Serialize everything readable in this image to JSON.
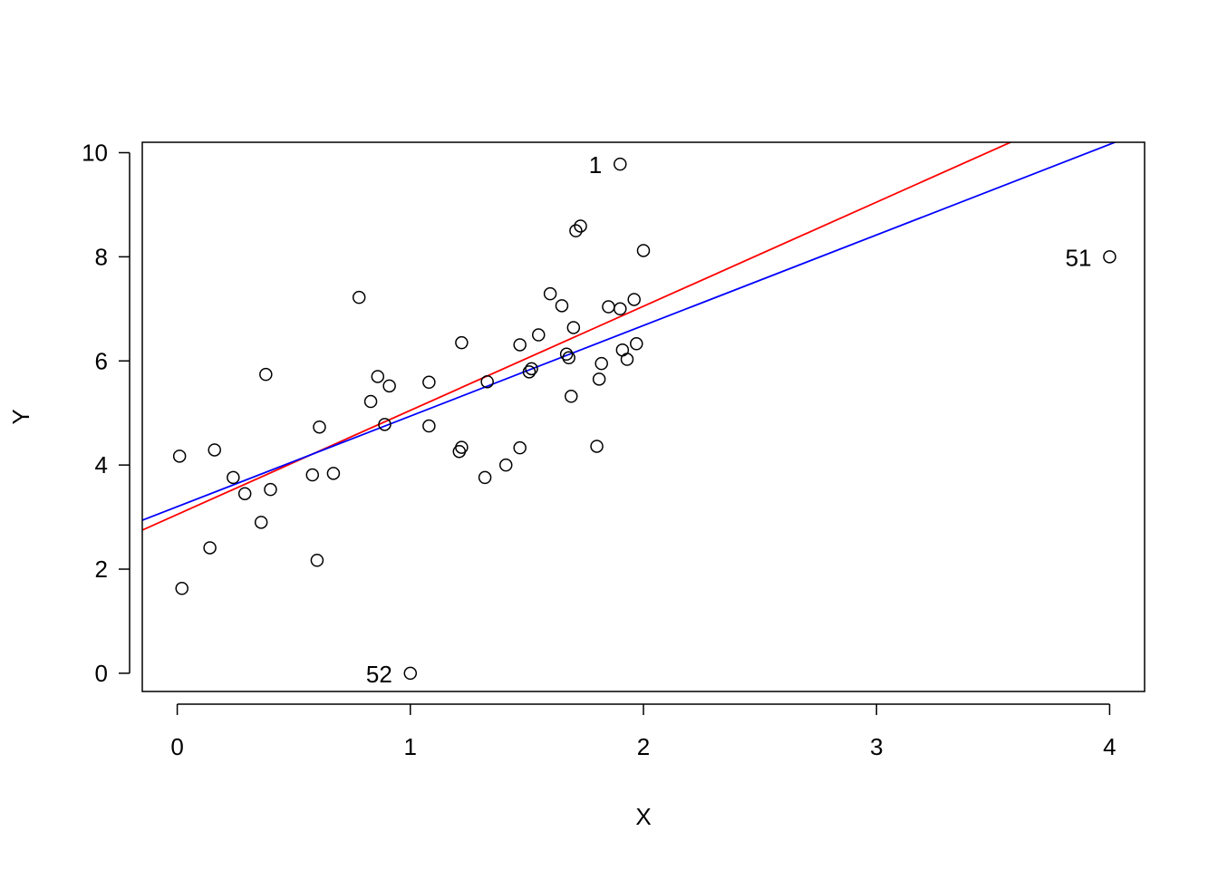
{
  "chart_data": {
    "type": "scatter",
    "title": "",
    "xlabel": "X",
    "ylabel": "Y",
    "xlim": [
      -0.15,
      4.15
    ],
    "ylim": [
      -0.35,
      10.2
    ],
    "x_ticks": [
      0,
      1,
      2,
      3,
      4
    ],
    "x_tick_labels": [
      "0",
      "1",
      "2",
      "3",
      "4"
    ],
    "y_ticks": [
      0,
      2,
      4,
      6,
      8,
      10
    ],
    "y_tick_labels": [
      "0",
      "2",
      "4",
      "6",
      "8",
      "10"
    ],
    "grid": false,
    "point_style": "open-circle",
    "points": [
      {
        "x": 0.01,
        "y": 4.17
      },
      {
        "x": 0.02,
        "y": 1.63
      },
      {
        "x": 0.14,
        "y": 2.41
      },
      {
        "x": 0.16,
        "y": 4.29
      },
      {
        "x": 0.24,
        "y": 3.76
      },
      {
        "x": 0.29,
        "y": 3.45
      },
      {
        "x": 0.36,
        "y": 2.9
      },
      {
        "x": 0.38,
        "y": 5.74
      },
      {
        "x": 0.4,
        "y": 3.53
      },
      {
        "x": 0.58,
        "y": 3.81
      },
      {
        "x": 0.6,
        "y": 2.17
      },
      {
        "x": 0.61,
        "y": 4.73
      },
      {
        "x": 0.67,
        "y": 3.84
      },
      {
        "x": 0.78,
        "y": 7.22
      },
      {
        "x": 0.83,
        "y": 5.22
      },
      {
        "x": 0.86,
        "y": 5.7
      },
      {
        "x": 0.89,
        "y": 4.78
      },
      {
        "x": 0.91,
        "y": 5.52
      },
      {
        "x": 1.08,
        "y": 5.59
      },
      {
        "x": 1.08,
        "y": 4.75
      },
      {
        "x": 1.21,
        "y": 4.26
      },
      {
        "x": 1.22,
        "y": 4.34
      },
      {
        "x": 1.22,
        "y": 6.35
      },
      {
        "x": 1.32,
        "y": 3.76
      },
      {
        "x": 1.33,
        "y": 5.6
      },
      {
        "x": 1.41,
        "y": 4.0
      },
      {
        "x": 1.47,
        "y": 4.33
      },
      {
        "x": 1.47,
        "y": 6.31
      },
      {
        "x": 1.51,
        "y": 5.79
      },
      {
        "x": 1.52,
        "y": 5.85
      },
      {
        "x": 1.55,
        "y": 6.5
      },
      {
        "x": 1.6,
        "y": 7.29
      },
      {
        "x": 1.65,
        "y": 7.06
      },
      {
        "x": 1.67,
        "y": 6.13
      },
      {
        "x": 1.68,
        "y": 6.06
      },
      {
        "x": 1.69,
        "y": 5.32
      },
      {
        "x": 1.7,
        "y": 6.64
      },
      {
        "x": 1.71,
        "y": 8.5
      },
      {
        "x": 1.73,
        "y": 8.59
      },
      {
        "x": 1.8,
        "y": 4.36
      },
      {
        "x": 1.81,
        "y": 5.65
      },
      {
        "x": 1.82,
        "y": 5.95
      },
      {
        "x": 1.85,
        "y": 7.04
      },
      {
        "x": 1.9,
        "y": 7.0
      },
      {
        "x": 1.91,
        "y": 6.21
      },
      {
        "x": 1.93,
        "y": 6.03
      },
      {
        "x": 1.96,
        "y": 7.18
      },
      {
        "x": 1.97,
        "y": 6.33
      },
      {
        "x": 2.0,
        "y": 8.12
      },
      {
        "x": 1.9,
        "y": 9.78,
        "label": "1"
      },
      {
        "x": 4.0,
        "y": 8.0,
        "label": "51"
      },
      {
        "x": 1.0,
        "y": 0.0,
        "label": "52"
      }
    ],
    "lines": [
      {
        "color": "#ff0000",
        "intercept": 3.05,
        "slope": 2.0
      },
      {
        "color": "#0000ff",
        "intercept": 3.2,
        "slope": 1.74
      }
    ]
  }
}
